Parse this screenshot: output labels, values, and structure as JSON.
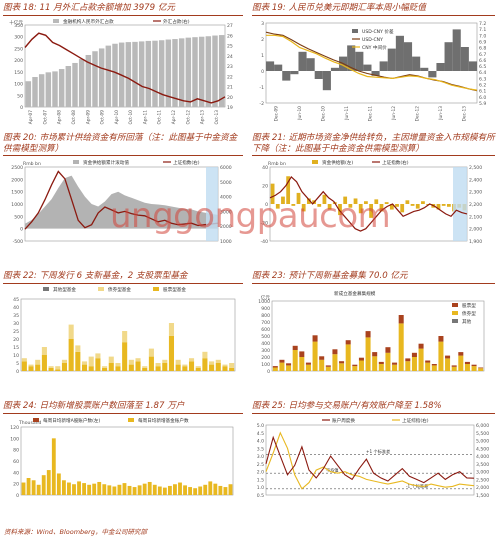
{
  "source": "资料来源：Wind、Bloomberg，中金公司研究部",
  "watermark": "unggongpaucom",
  "panels": [
    {
      "id": "p18",
      "title": "图表 18:  11 月外汇占款余额增加 3979 亿元",
      "chart_data": {
        "type": "bar+line",
        "ylabel_left": "十亿元",
        "ylabel_right": "",
        "legend": [
          "金融机构人民币外汇占款",
          "外汇占款(右)"
        ],
        "x": [
          "Apr-07",
          "Oct-07",
          "Apr-08",
          "Oct-08",
          "Apr-09",
          "Oct-09",
          "Apr-10",
          "Oct-10",
          "Apr-11",
          "Oct-11",
          "Apr-12",
          "Oct-12",
          "Apr-13",
          "Oct-13"
        ],
        "ylim_left": [
          0,
          350
        ],
        "ylim_right": [
          19,
          27
        ],
        "bars": [
          110,
          128,
          140,
          148,
          152,
          162,
          175,
          188,
          205,
          222,
          238,
          250,
          262,
          270,
          275,
          277,
          278,
          280,
          282,
          283,
          285,
          288,
          290,
          293,
          296,
          298,
          300,
          302,
          305,
          307
        ],
        "line": [
          24.8,
          25.6,
          26.2,
          26.0,
          25.3,
          25.0,
          24.6,
          24.2,
          23.8,
          23.4,
          23.1,
          22.8,
          22.6,
          22.4,
          22.1,
          21.8,
          21.4,
          21.0,
          20.8,
          20.5,
          20.2,
          20.0,
          19.8,
          19.6,
          19.5,
          19.8,
          19.6,
          19.4,
          19.6,
          20.0
        ]
      }
    },
    {
      "id": "p19",
      "title": "图表 19:  人民币兑美元即期汇率本周小幅贬值",
      "chart_data": {
        "type": "area+line",
        "legend": [
          "USD-CNY 价差",
          "USD-CNY",
          "CNY 中间价"
        ],
        "ylim_left": [
          5.9,
          7.2
        ],
        "ylim_right": [
          -2,
          3
        ],
        "x": [
          "Dec-09",
          "Jun-10",
          "Dec-10",
          "Jun-11",
          "Dec-11",
          "Jun-12",
          "Dec-12",
          "Jun-13",
          "Dec-13"
        ],
        "spread": [
          0.6,
          0.4,
          -0.6,
          -0.2,
          1.2,
          0.8,
          -0.5,
          -1.2,
          0.2,
          0.9,
          1.6,
          1.2,
          0.4,
          -0.3,
          0.6,
          1.4,
          2.2,
          1.8,
          0.9,
          0.2,
          -0.4,
          0.5,
          1.8,
          2.6,
          1.5,
          0.6
        ],
        "spot": [
          7.05,
          7.02,
          7.0,
          6.93,
          6.85,
          6.78,
          6.72,
          6.66,
          6.6,
          6.55,
          6.48,
          6.42,
          6.38,
          6.35,
          6.32,
          6.3,
          6.33,
          6.36,
          6.34,
          6.3,
          6.27,
          6.25,
          6.2,
          6.17,
          6.13,
          6.1
        ],
        "mid": [
          7.0,
          7.0,
          6.98,
          6.9,
          6.8,
          6.75,
          6.7,
          6.63,
          6.57,
          6.52,
          6.45,
          6.38,
          6.33,
          6.32,
          6.31,
          6.3,
          6.32,
          6.34,
          6.33,
          6.3,
          6.28,
          6.24,
          6.19,
          6.16,
          6.13,
          6.11
        ]
      }
    },
    {
      "id": "p20",
      "title": "图表 20:  市场累计供给资金有所回落（注：此图基于中金资金供需模型测算）",
      "chart_data": {
        "type": "area+line",
        "ylabel": "Rmb bn",
        "legend": [
          "资金供给额累计滚动值",
          "上证指数(右)"
        ],
        "ylim_left": [
          -500,
          2500
        ],
        "ylim_right": [
          1000,
          6000
        ],
        "area": [
          200,
          350,
          600,
          900,
          1200,
          1650,
          2050,
          2150,
          1700,
          1300,
          1000,
          900,
          1100,
          1400,
          1500,
          1350,
          1250,
          1150,
          1050,
          1000,
          980,
          950,
          900,
          850,
          800,
          780,
          700,
          650,
          600,
          560
        ],
        "line": [
          1800,
          2300,
          2900,
          3800,
          4800,
          5700,
          5200,
          3800,
          2400,
          1900,
          2100,
          2900,
          3300,
          3100,
          2900,
          3000,
          2850,
          2750,
          2700,
          2500,
          2300,
          2400,
          2200,
          2100,
          2150,
          2200,
          2050,
          2100,
          2150,
          2200
        ]
      }
    },
    {
      "id": "p21",
      "title": "图表 21:  近期市场资金净供给转负，主因增量资金入市规模有所下降（注：此图基于中金资金供需模型测算）",
      "chart_data": {
        "type": "bar+line",
        "ylabel": "Rmb bn",
        "legend": [
          "资金供给额(左)",
          "上证指数(右)"
        ],
        "ylim_left": [
          -40,
          40
        ],
        "ylim_right": [
          1900,
          2500
        ],
        "bars": [
          22,
          -5,
          8,
          30,
          -2,
          12,
          -8,
          6,
          4,
          -3,
          10,
          -6,
          2,
          -12,
          8,
          -4,
          6,
          -10,
          3,
          -15,
          5,
          -8,
          2,
          -6,
          -3,
          -9,
          4,
          -2,
          -5,
          3,
          -1,
          -4,
          -6,
          -2,
          -3,
          -8,
          -4,
          -7
        ],
        "line": [
          2250,
          2270,
          2300,
          2350,
          2420,
          2380,
          2300,
          2250,
          2200,
          2250,
          2300,
          2250,
          2220,
          2150,
          2100,
          2050,
          2000,
          1980,
          2000,
          2050,
          2100,
          2150,
          2180,
          2200,
          2150,
          2100,
          2120,
          2140,
          2150,
          2170,
          2200,
          2180,
          2150,
          2120,
          2100,
          2150,
          2130,
          2120
        ]
      }
    },
    {
      "id": "p22",
      "title": "图表 22:  下周发行 6 支新基金，2 支股票型基金",
      "chart_data": {
        "type": "bar",
        "legend": [
          "其他型基金",
          "债券型基金",
          "股票型基金"
        ],
        "ylim": [
          0,
          45
        ],
        "series": [
          {
            "name": "股票型基金",
            "values": [
              6,
              3,
              4,
              10,
              2,
              1,
              5,
              20,
              12,
              4,
              3,
              8,
              2,
              5,
              3,
              18,
              4,
              6,
              2,
              9,
              3,
              5,
              22,
              4,
              3,
              6,
              2,
              8,
              4,
              5,
              3,
              2
            ]
          },
          {
            "name": "债券型基金",
            "values": [
              2,
              1,
              3,
              5,
              1,
              2,
              2,
              9,
              4,
              2,
              6,
              3,
              1,
              4,
              2,
              7,
              3,
              2,
              1,
              5,
              2,
              2,
              8,
              3,
              1,
              2,
              1,
              4,
              2,
              2,
              1,
              3
            ]
          }
        ]
      }
    },
    {
      "id": "p23",
      "title": "图表 23:  预计下周新基金募集 70.0 亿元",
      "chart_data": {
        "type": "bar",
        "ylabel": "亿元",
        "legend": [
          "股票型",
          "债券型",
          "其他"
        ],
        "subtitle": "新成立基金募集规模",
        "ylim": [
          0,
          1000
        ],
        "series": [
          {
            "name": "股票型",
            "values": [
              50,
              120,
              80,
              300,
              200,
              90,
              420,
              160,
              60,
              240,
              110,
              380,
              70,
              150,
              480,
              210,
              100,
              260,
              90,
              680,
              140,
              200,
              320,
              120,
              80,
              420,
              180,
              60,
              220,
              100,
              70,
              40
            ]
          },
          {
            "name": "债券型",
            "values": [
              20,
              40,
              30,
              60,
              80,
              30,
              90,
              50,
              20,
              70,
              30,
              60,
              20,
              40,
              90,
              60,
              30,
              80,
              30,
              120,
              40,
              60,
              70,
              30,
              20,
              80,
              40,
              20,
              50,
              30,
              20,
              10
            ]
          }
        ]
      }
    },
    {
      "id": "p24",
      "title": "图表 24:  日均新增股票账户数回落至 1.87 万户",
      "chart_data": {
        "type": "bar",
        "ylabel": "Thousand",
        "legend": [
          "每周日均新增A股账户数(左)",
          "每周日均新增基金账户数"
        ],
        "ylim": [
          0,
          120
        ],
        "values": [
          22,
          30,
          26,
          18,
          35,
          44,
          100,
          38,
          26,
          22,
          19,
          24,
          21,
          18,
          20,
          23,
          19,
          17,
          15,
          18,
          21,
          16,
          14,
          17,
          20,
          23,
          18,
          15,
          13,
          16,
          19,
          22,
          17,
          14,
          12,
          15,
          18,
          24,
          20,
          16,
          14,
          19
        ]
      }
    },
    {
      "id": "p25",
      "title": "图表 25:  日均参与交易账户/有效账户降至 1.58%",
      "chart_data": {
        "type": "line",
        "legend": [
          "账户周度换",
          "上证综指(右)"
        ],
        "ylim_left": [
          0.5,
          5
        ],
        "ylim_right": [
          1500,
          6000
        ],
        "annotations": [
          "平均值",
          "+1 个标准差",
          "-1 个标准差"
        ],
        "line1": [
          2.5,
          4.2,
          3.0,
          1.8,
          2.4,
          3.6,
          2.1,
          1.6,
          2.2,
          3.0,
          2.4,
          1.8,
          1.5,
          2.2,
          2.8,
          1.9,
          1.6,
          1.4,
          1.8,
          2.2,
          1.7,
          1.5,
          1.3,
          1.6,
          1.9,
          1.5,
          1.8,
          2.0,
          1.6,
          1.58
        ],
        "line2": [
          3000,
          4200,
          5500,
          4500,
          2800,
          1900,
          2300,
          3100,
          3300,
          3000,
          2900,
          3000,
          2800,
          2700,
          2500,
          2400,
          2300,
          2200,
          2300,
          2400,
          2200,
          2100,
          2050,
          2200,
          2100,
          2000,
          2050,
          2200,
          2150,
          2100
        ]
      }
    }
  ]
}
